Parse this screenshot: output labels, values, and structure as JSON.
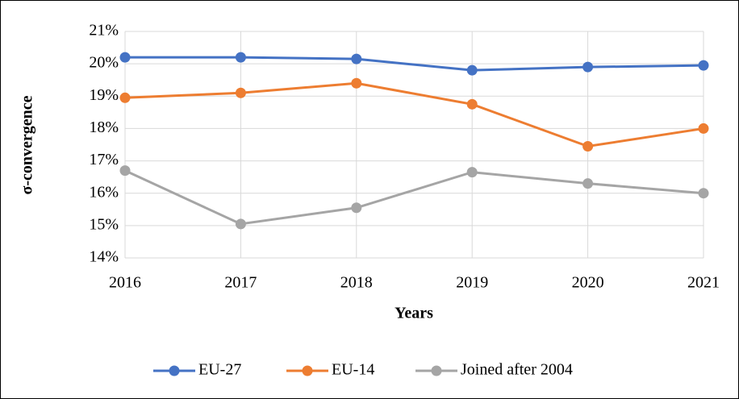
{
  "chart_data": {
    "type": "line",
    "x_label": "Years",
    "y_label": "σ-convergence",
    "categories": [
      "2016",
      "2017",
      "2018",
      "2019",
      "2020",
      "2021"
    ],
    "series": [
      {
        "name": "EU-27",
        "color": "#4472c4",
        "values": [
          20.2,
          20.2,
          20.15,
          19.8,
          19.9,
          19.95
        ]
      },
      {
        "name": "EU-14",
        "color": "#ed7d31",
        "values": [
          18.95,
          19.1,
          19.4,
          18.75,
          17.45,
          18.0
        ]
      },
      {
        "name": "Joined after 2004",
        "color": "#a5a5a5",
        "values": [
          16.7,
          15.05,
          15.55,
          16.65,
          16.3,
          16.0
        ]
      }
    ],
    "ylim": [
      14,
      21
    ],
    "yticks": [
      {
        "value": 14,
        "label": "14%"
      },
      {
        "value": 15,
        "label": "15%"
      },
      {
        "value": 16,
        "label": "16%"
      },
      {
        "value": 17,
        "label": "17%"
      },
      {
        "value": 18,
        "label": "18%"
      },
      {
        "value": 19,
        "label": "19%"
      },
      {
        "value": 20,
        "label": "20%"
      },
      {
        "value": 21,
        "label": "21%"
      }
    ],
    "grid": true,
    "legend": "bottom"
  }
}
